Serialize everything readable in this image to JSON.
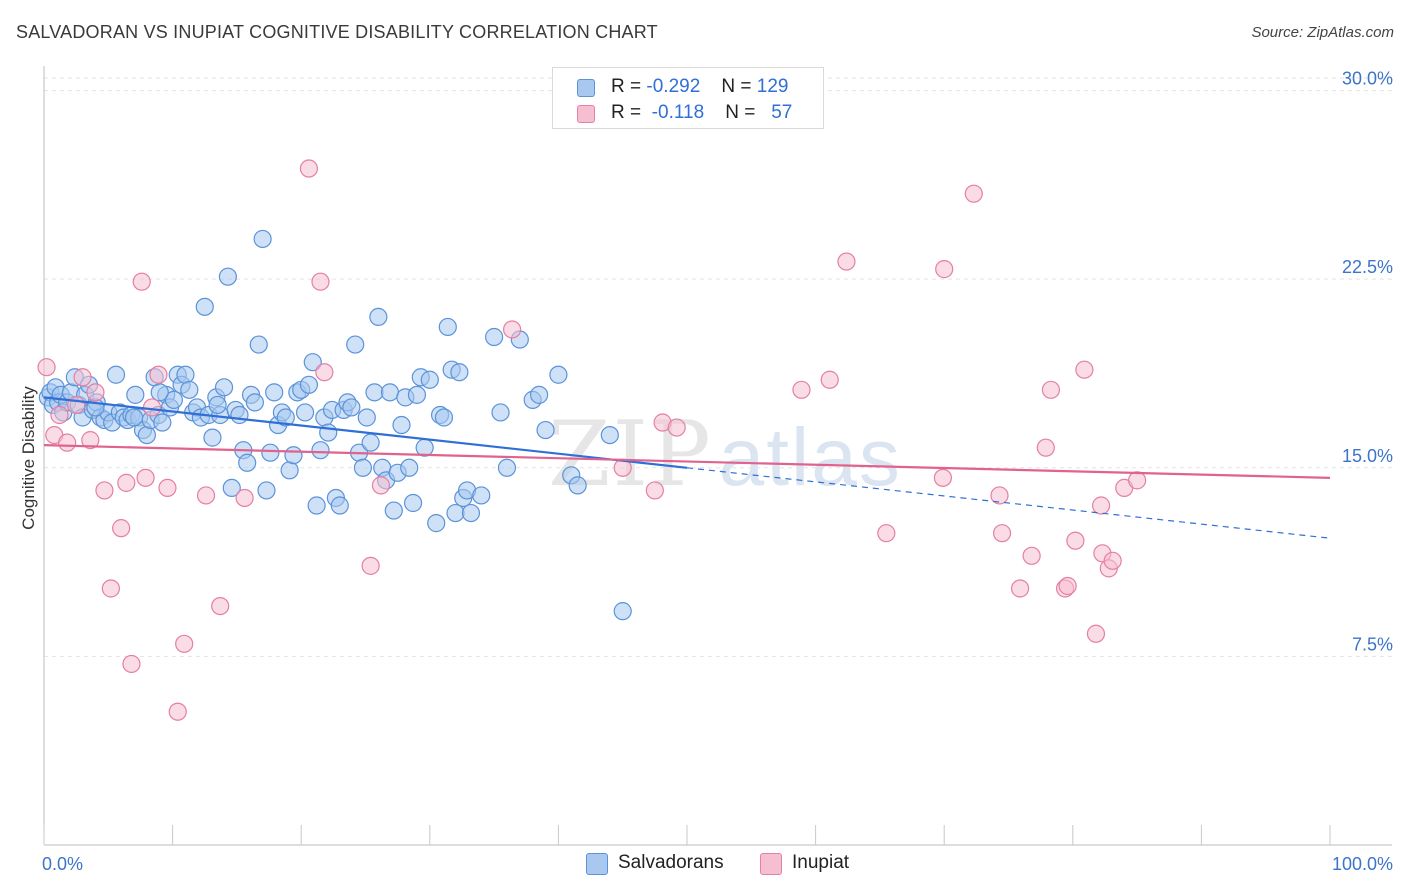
{
  "header": {
    "title": "SALVADORAN VS INUPIAT COGNITIVE DISABILITY CORRELATION CHART",
    "source": "Source: ZipAtlas.com"
  },
  "watermark": {
    "zip": "ZIP",
    "atlas": "atlas"
  },
  "legend": {
    "rows": [
      {
        "r_label": "R =",
        "r_value": "-0.292",
        "n_label": "N =",
        "n_value": "129"
      },
      {
        "r_label": "R =",
        "r_value": "-0.118",
        "n_label": "N =",
        "n_value": "57"
      }
    ]
  },
  "bottom_legend": {
    "series1": "Salvadorans",
    "series2": "Inupiat"
  },
  "colors": {
    "blue_fill": "#a8c8ef",
    "blue_stroke": "#5b93d9",
    "blue_line": "#2f6fd6",
    "pink_fill": "#f6bfd1",
    "pink_stroke": "#e57fa3",
    "pink_line": "#e0628e",
    "grid": "#e3e3e3",
    "tick_text": "#3b74c9"
  },
  "chart_data": {
    "type": "scatter",
    "title": "SALVADORAN VS INUPIAT COGNITIVE DISABILITY CORRELATION CHART",
    "xlabel": "",
    "ylabel": "Cognitive Disability",
    "xlim": [
      0,
      100
    ],
    "ylim": [
      0,
      30.5
    ],
    "x_tick_labels": [
      "0.0%",
      "100.0%"
    ],
    "y_ticks": [
      7.5,
      15.0,
      22.5,
      30.0
    ],
    "y_tick_labels": [
      "7.5%",
      "15.0%",
      "22.5%",
      "30.0%"
    ],
    "grid": "horizontal dashed",
    "series": [
      {
        "name": "Salvadorans",
        "r": -0.292,
        "n": 129,
        "trend": {
          "x_start": 0,
          "y_start": 17.8,
          "x_end_solid": 50,
          "y_end_solid": 15.0,
          "x_end_dashed": 100,
          "y_end_dashed": 12.2
        },
        "points": [
          [
            0.3,
            17.8
          ],
          [
            0.5,
            18.0
          ],
          [
            0.7,
            17.5
          ],
          [
            0.9,
            18.2
          ],
          [
            1.1,
            17.6
          ],
          [
            1.3,
            17.9
          ],
          [
            1.5,
            17.2
          ],
          [
            1.8,
            17.6
          ],
          [
            2.1,
            18.0
          ],
          [
            2.4,
            18.6
          ],
          [
            2.7,
            17.5
          ],
          [
            3.0,
            17.0
          ],
          [
            3.2,
            17.9
          ],
          [
            3.5,
            18.3
          ],
          [
            3.8,
            17.3
          ],
          [
            4.1,
            17.6
          ],
          [
            4.4,
            17.0
          ],
          [
            4.7,
            16.9
          ],
          [
            5.0,
            17.2
          ],
          [
            5.3,
            16.8
          ],
          [
            5.6,
            18.7
          ],
          [
            5.9,
            17.2
          ],
          [
            6.2,
            17.0
          ],
          [
            6.5,
            16.9
          ],
          [
            6.8,
            17.1
          ],
          [
            7.1,
            17.9
          ],
          [
            7.4,
            17.0
          ],
          [
            7.7,
            16.5
          ],
          [
            8.0,
            16.3
          ],
          [
            8.3,
            16.9
          ],
          [
            8.6,
            18.6
          ],
          [
            8.9,
            17.1
          ],
          [
            9.2,
            16.8
          ],
          [
            9.5,
            17.9
          ],
          [
            9.8,
            17.4
          ],
          [
            10.1,
            17.7
          ],
          [
            10.4,
            18.7
          ],
          [
            10.7,
            18.3
          ],
          [
            11.0,
            18.7
          ],
          [
            11.3,
            18.1
          ],
          [
            11.6,
            17.2
          ],
          [
            11.9,
            17.4
          ],
          [
            12.2,
            17.0
          ],
          [
            12.5,
            21.4
          ],
          [
            12.8,
            17.1
          ],
          [
            13.1,
            16.2
          ],
          [
            13.4,
            17.8
          ],
          [
            13.7,
            17.1
          ],
          [
            14.0,
            18.2
          ],
          [
            14.3,
            22.6
          ],
          [
            14.6,
            14.2
          ],
          [
            14.9,
            17.3
          ],
          [
            15.2,
            17.1
          ],
          [
            15.5,
            15.7
          ],
          [
            15.8,
            15.2
          ],
          [
            16.1,
            17.9
          ],
          [
            16.4,
            17.6
          ],
          [
            16.7,
            19.9
          ],
          [
            17.0,
            24.1
          ],
          [
            17.3,
            14.1
          ],
          [
            17.6,
            15.6
          ],
          [
            17.9,
            18.0
          ],
          [
            18.2,
            16.7
          ],
          [
            18.5,
            17.2
          ],
          [
            18.8,
            17.0
          ],
          [
            19.1,
            14.9
          ],
          [
            19.4,
            15.5
          ],
          [
            19.7,
            18.0
          ],
          [
            20.0,
            18.1
          ],
          [
            20.3,
            17.2
          ],
          [
            20.6,
            18.3
          ],
          [
            20.9,
            19.2
          ],
          [
            21.2,
            13.5
          ],
          [
            21.5,
            15.7
          ],
          [
            21.8,
            17.0
          ],
          [
            22.1,
            16.4
          ],
          [
            22.4,
            17.3
          ],
          [
            22.7,
            13.8
          ],
          [
            23.0,
            13.5
          ],
          [
            23.3,
            17.3
          ],
          [
            23.6,
            17.6
          ],
          [
            23.9,
            17.4
          ],
          [
            24.2,
            19.9
          ],
          [
            24.5,
            15.6
          ],
          [
            24.8,
            15.0
          ],
          [
            25.1,
            17.0
          ],
          [
            25.4,
            16.0
          ],
          [
            25.7,
            18.0
          ],
          [
            26.0,
            21.0
          ],
          [
            26.3,
            15.0
          ],
          [
            26.6,
            14.5
          ],
          [
            26.9,
            18.0
          ],
          [
            27.2,
            13.3
          ],
          [
            27.5,
            14.8
          ],
          [
            27.8,
            16.7
          ],
          [
            28.1,
            17.8
          ],
          [
            28.4,
            15.0
          ],
          [
            28.7,
            13.6
          ],
          [
            29.0,
            17.9
          ],
          [
            29.3,
            18.6
          ],
          [
            29.6,
            15.8
          ],
          [
            30.0,
            18.5
          ],
          [
            30.5,
            12.8
          ],
          [
            30.8,
            17.1
          ],
          [
            31.1,
            17.0
          ],
          [
            31.4,
            20.6
          ],
          [
            31.7,
            18.9
          ],
          [
            32.0,
            13.2
          ],
          [
            32.3,
            18.8
          ],
          [
            32.6,
            13.8
          ],
          [
            32.9,
            14.1
          ],
          [
            33.2,
            13.2
          ],
          [
            34.0,
            13.9
          ],
          [
            35.0,
            20.2
          ],
          [
            35.5,
            17.2
          ],
          [
            36.0,
            15.0
          ],
          [
            37.0,
            20.1
          ],
          [
            38.0,
            17.7
          ],
          [
            38.5,
            17.9
          ],
          [
            39.0,
            16.5
          ],
          [
            40.0,
            18.7
          ],
          [
            41.0,
            14.7
          ],
          [
            41.5,
            14.3
          ],
          [
            44.0,
            16.3
          ],
          [
            45.0,
            9.3
          ],
          [
            13.5,
            17.5
          ],
          [
            4.0,
            17.4
          ],
          [
            7.0,
            17.0
          ],
          [
            9.0,
            18.0
          ]
        ]
      },
      {
        "name": "Inupiat",
        "r": -0.118,
        "n": 57,
        "trend": {
          "x_start": 0,
          "y_start": 15.9,
          "x_end": 100,
          "y_end": 14.6
        },
        "points": [
          [
            0.2,
            19.0
          ],
          [
            0.8,
            16.3
          ],
          [
            1.2,
            17.1
          ],
          [
            1.8,
            16.0
          ],
          [
            2.5,
            17.5
          ],
          [
            3.0,
            18.6
          ],
          [
            3.6,
            16.1
          ],
          [
            4.0,
            18.0
          ],
          [
            4.7,
            14.1
          ],
          [
            5.2,
            10.2
          ],
          [
            6.0,
            12.6
          ],
          [
            6.4,
            14.4
          ],
          [
            6.8,
            7.2
          ],
          [
            7.6,
            22.4
          ],
          [
            7.9,
            14.6
          ],
          [
            8.4,
            17.4
          ],
          [
            8.9,
            18.7
          ],
          [
            9.6,
            14.2
          ],
          [
            10.4,
            5.3
          ],
          [
            10.9,
            8.0
          ],
          [
            12.6,
            13.9
          ],
          [
            13.7,
            9.5
          ],
          [
            15.6,
            13.8
          ],
          [
            20.6,
            26.9
          ],
          [
            21.5,
            22.4
          ],
          [
            21.8,
            18.8
          ],
          [
            25.4,
            11.1
          ],
          [
            26.2,
            14.3
          ],
          [
            36.4,
            20.5
          ],
          [
            45.0,
            15.0
          ],
          [
            47.5,
            14.1
          ],
          [
            48.1,
            16.8
          ],
          [
            49.2,
            16.6
          ],
          [
            58.9,
            18.1
          ],
          [
            61.1,
            18.5
          ],
          [
            62.4,
            23.2
          ],
          [
            65.5,
            12.4
          ],
          [
            69.9,
            14.6
          ],
          [
            70.0,
            22.9
          ],
          [
            72.3,
            25.9
          ],
          [
            74.3,
            13.9
          ],
          [
            74.5,
            12.4
          ],
          [
            75.9,
            10.2
          ],
          [
            76.8,
            11.5
          ],
          [
            77.9,
            15.8
          ],
          [
            78.3,
            18.1
          ],
          [
            79.4,
            10.2
          ],
          [
            79.6,
            10.3
          ],
          [
            80.2,
            12.1
          ],
          [
            80.9,
            18.9
          ],
          [
            81.8,
            8.4
          ],
          [
            82.2,
            13.5
          ],
          [
            82.3,
            11.6
          ],
          [
            82.8,
            11.0
          ],
          [
            83.1,
            11.3
          ],
          [
            84.0,
            14.2
          ],
          [
            85.0,
            14.5
          ]
        ]
      }
    ]
  }
}
